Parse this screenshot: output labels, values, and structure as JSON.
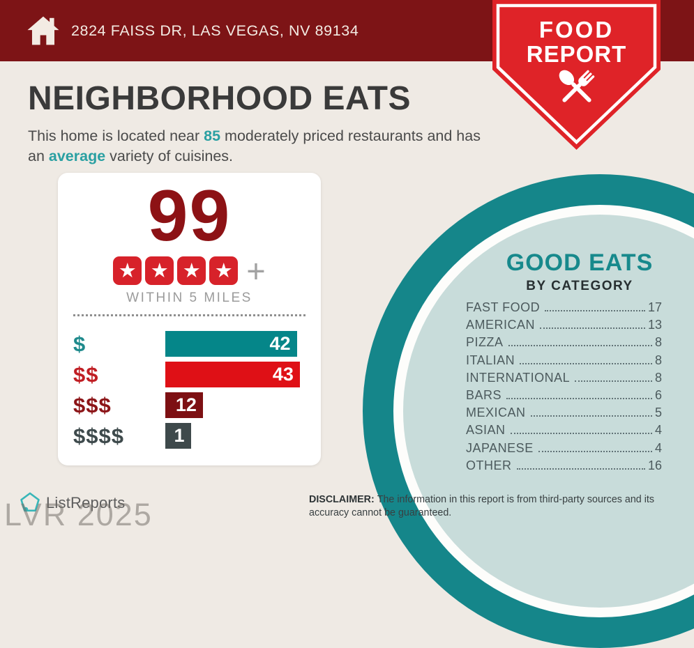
{
  "header": {
    "address": "2824 FAISS DR, LAS VEGAS, NV 89134"
  },
  "ribbon": {
    "line1": "FOOD",
    "line2": "REPORT"
  },
  "intro": {
    "title": "NEIGHBORHOOD EATS",
    "sub_pre": "This home is located near ",
    "sub_count": "85",
    "sub_mid": " moderately priced restaurants and has an ",
    "sub_highlight": "average",
    "sub_post": " variety of cuisines."
  },
  "score_card": {
    "score": "99",
    "star_count": 4,
    "star_glyph": "★",
    "plus_sign": "+",
    "caption": "WITHIN 5 MILES"
  },
  "chart_data": [
    {
      "type": "bar",
      "orientation": "horizontal",
      "categories": [
        "$",
        "$$",
        "$$$",
        "$$$$"
      ],
      "values": [
        42,
        43,
        12,
        1
      ],
      "xlim": [
        0,
        43
      ],
      "value_labels_inside_bars": true,
      "bar_colors": [
        "#058689",
        "#DF1016",
        "#7D1013",
        "#3E494B"
      ],
      "label_colors": [
        "#1F8A8C",
        "#C01E24",
        "#8C1518",
        "#3E4A4C"
      ],
      "value_label_color": "#FFFFFF"
    },
    {
      "type": "table",
      "title": "GOOD EATS",
      "subtitle": "BY CATEGORY",
      "categories": [
        "FAST FOOD",
        "AMERICAN",
        "PIZZA",
        "ITALIAN",
        "INTERNATIONAL",
        "BARS",
        "MEXICAN",
        "ASIAN",
        "JAPANESE",
        "OTHER"
      ],
      "values": [
        17,
        13,
        8,
        8,
        8,
        6,
        5,
        4,
        4,
        16
      ]
    }
  ],
  "footer": {
    "brand": "ListReports",
    "disclaimer_label": "DISCLAIMER:",
    "disclaimer_text": "The information in this report is from third-party sources and its accuracy cannot be guaranteed.",
    "watermark": "LVR 2025"
  },
  "colors": {
    "header_red": "#7D1416",
    "ribbon_red": "#DF2328",
    "accent_teal": "#2AA0A2",
    "ring_teal": "#15868A",
    "inner_circle_teal": "#C8DCDA",
    "score_red": "#8D1215",
    "star_red": "#D7222A",
    "background_cream": "#EFEAE4"
  }
}
